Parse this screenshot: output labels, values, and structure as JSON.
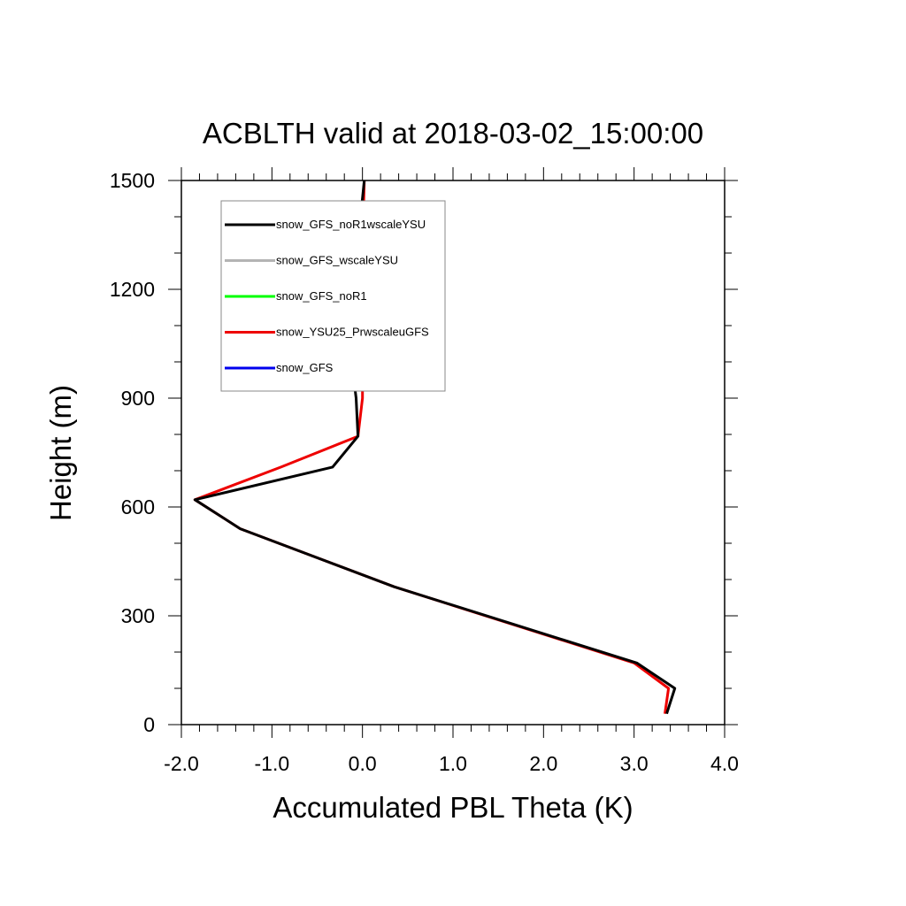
{
  "chart_data": {
    "type": "line",
    "title": "ACBLTH valid at 2018-03-02_15:00:00",
    "xlabel": "Accumulated PBL Theta (K)",
    "ylabel": "Height (m)",
    "xlim": [
      -2.0,
      4.0
    ],
    "ylim": [
      0,
      1500
    ],
    "xticks": [
      -2.0,
      -1.0,
      0.0,
      1.0,
      2.0,
      3.0,
      4.0
    ],
    "xtick_labels": [
      "-2.0",
      "-1.0",
      "0.0",
      "1.0",
      "2.0",
      "3.0",
      "4.0"
    ],
    "yticks": [
      0,
      300,
      600,
      900,
      1200,
      1500
    ],
    "ytick_labels": [
      "0",
      "300",
      "600",
      "900",
      "1200",
      "1500"
    ],
    "grid": false,
    "legend_position": "top-left",
    "series": [
      {
        "name": "snow_GFS_noR1wscaleYSU",
        "color": "#000000",
        "x": [
          3.36,
          3.45,
          3.03,
          0.35,
          -1.35,
          -1.85,
          -0.33,
          -0.05,
          -0.07,
          -0.12,
          -0.08,
          -0.04,
          -0.03,
          -0.02,
          0.02
        ],
        "y": [
          30,
          100,
          170,
          380,
          540,
          620,
          710,
          795,
          900,
          1000,
          1100,
          1200,
          1300,
          1400,
          1500
        ]
      },
      {
        "name": "snow_GFS_wscaleYSU",
        "color": "#b4b4b4",
        "x": [],
        "y": []
      },
      {
        "name": "snow_GFS_noR1",
        "color": "#00ff00",
        "x": [],
        "y": []
      },
      {
        "name": "snow_YSU25_PrwscaleuGFS",
        "color": "#ee0000",
        "x": [
          3.34,
          3.38,
          3.0,
          0.35,
          -1.35,
          -1.85,
          -0.9,
          -0.05,
          0.0,
          0.0,
          0.0,
          0.0,
          0.0,
          0.01,
          0.02
        ],
        "y": [
          30,
          100,
          170,
          380,
          540,
          620,
          710,
          795,
          900,
          1000,
          1100,
          1200,
          1300,
          1400,
          1500
        ]
      },
      {
        "name": "snow_GFS",
        "color": "#0000ee",
        "x": [],
        "y": []
      }
    ]
  }
}
